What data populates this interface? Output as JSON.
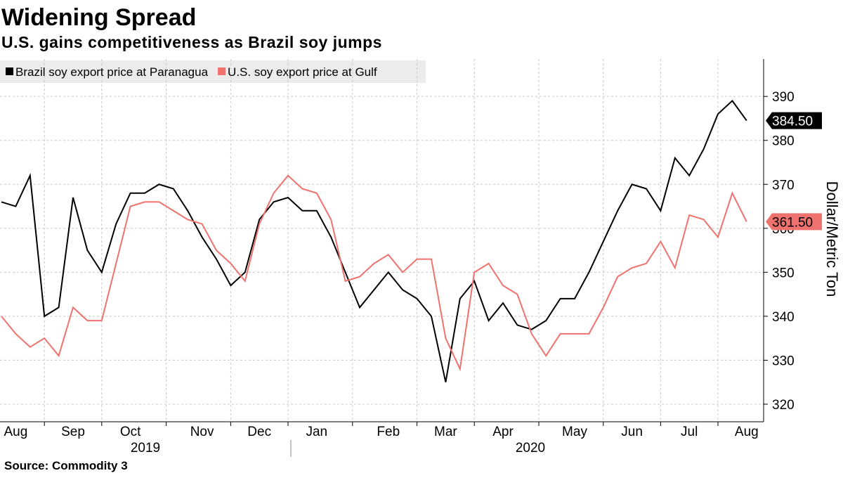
{
  "chart_data": {
    "type": "line",
    "title": "Widening Spread",
    "subtitle": "U.S. gains competitiveness as Brazil soy jumps",
    "y_label": "Dollar/Metric Ton",
    "source": "Source: Commodity 3",
    "year_labels": [
      "2019",
      "2020"
    ],
    "categories": [
      null,
      "Aug",
      null,
      null,
      null,
      "Sep",
      null,
      null,
      null,
      "Oct",
      null,
      null,
      null,
      null,
      "Nov",
      null,
      null,
      null,
      "Dec",
      null,
      null,
      null,
      "Jan",
      null,
      null,
      null,
      null,
      "Feb",
      null,
      null,
      null,
      "Mar",
      null,
      null,
      null,
      "Apr",
      null,
      null,
      null,
      null,
      "May",
      null,
      null,
      null,
      "Jun",
      null,
      null,
      null,
      "Jul",
      null,
      null,
      null,
      "Aug"
    ],
    "series": [
      {
        "name": "Brazil soy export price at Paranagua",
        "color": "#000000",
        "values": [
          366,
          365,
          372,
          340,
          342,
          367,
          355,
          350,
          361,
          368,
          368,
          370,
          369,
          364,
          358,
          353,
          347,
          350,
          362,
          366,
          367,
          364,
          364,
          358,
          350,
          342,
          346,
          350,
          346,
          344,
          340,
          325,
          344,
          348,
          339,
          343,
          338,
          337,
          339,
          344,
          344,
          350,
          357,
          364,
          370,
          369,
          364,
          376,
          372,
          378,
          386,
          389,
          384.5
        ],
        "value_labels": [
          null,
          null,
          null,
          null,
          null,
          null,
          null,
          null,
          null,
          null,
          null,
          null,
          null,
          null,
          null,
          null,
          null,
          null,
          null,
          null,
          null,
          null,
          null,
          null,
          null,
          null,
          null,
          null,
          null,
          null,
          null,
          null,
          null,
          null,
          null,
          null,
          null,
          null,
          null,
          null,
          null,
          null,
          null,
          null,
          null,
          null,
          null,
          null,
          null,
          null,
          null,
          null,
          "384.50"
        ]
      },
      {
        "name": "U.S. soy export price at Gulf",
        "color": "#f0726e",
        "values": [
          340,
          336,
          333,
          335,
          331,
          342,
          339,
          339,
          352,
          365,
          366,
          366,
          364,
          362,
          361,
          355,
          352,
          348,
          361,
          368,
          372,
          369,
          368,
          362,
          348,
          349,
          352,
          354,
          350,
          353,
          353,
          335,
          328,
          350,
          352,
          347,
          345,
          336,
          331,
          336,
          336,
          336,
          342,
          349,
          351,
          352,
          357,
          351,
          363,
          362,
          358,
          368,
          361.5
        ],
        "value_labels": [
          null,
          null,
          null,
          null,
          null,
          null,
          null,
          null,
          null,
          null,
          null,
          null,
          null,
          null,
          null,
          null,
          null,
          null,
          null,
          null,
          null,
          null,
          null,
          null,
          null,
          null,
          null,
          null,
          null,
          null,
          null,
          null,
          null,
          null,
          null,
          null,
          null,
          null,
          null,
          null,
          null,
          null,
          null,
          null,
          null,
          null,
          null,
          null,
          null,
          null,
          null,
          null,
          "361.50"
        ]
      }
    ],
    "ylim": [
      316,
      398.5
    ],
    "yticks": [
      320,
      330,
      340,
      350,
      360,
      370,
      380,
      390
    ],
    "grid": true
  }
}
